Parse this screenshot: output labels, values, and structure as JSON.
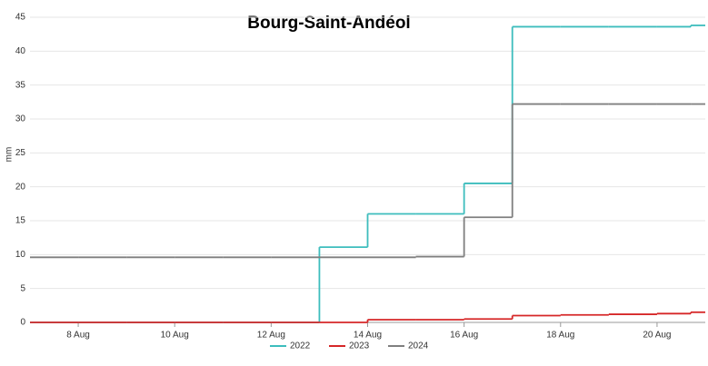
{
  "chart_data": {
    "type": "step",
    "title": "Bourg-Saint-Andéol",
    "y_label": "mm",
    "x": [
      7,
      8,
      9,
      10,
      11,
      12,
      13,
      14,
      15,
      16,
      17,
      18,
      19,
      20,
      20.7
    ],
    "series": [
      {
        "name": "2022",
        "color": "#3dbdbd",
        "values": [
          0,
          0,
          0,
          0,
          0,
          0,
          11.1,
          16,
          16,
          20.5,
          43.6,
          43.6,
          43.6,
          43.6,
          43.8
        ]
      },
      {
        "name": "2023",
        "color": "#d62728",
        "values": [
          0,
          0,
          0,
          0,
          0,
          0,
          0,
          0.4,
          0.4,
          0.5,
          1.0,
          1.1,
          1.2,
          1.3,
          1.5
        ]
      },
      {
        "name": "2024",
        "color": "#7f7f7f",
        "values": [
          9.6,
          9.6,
          9.6,
          9.6,
          9.6,
          9.6,
          9.6,
          9.6,
          9.7,
          15.5,
          32.2,
          32.2,
          32.2,
          32.2,
          32.2
        ]
      }
    ],
    "xlim": [
      7,
      21
    ],
    "xticks": [
      {
        "value": 8,
        "label": "8 Aug"
      },
      {
        "value": 10,
        "label": "10 Aug"
      },
      {
        "value": 12,
        "label": "12 Aug"
      },
      {
        "value": 14,
        "label": "14 Aug"
      },
      {
        "value": 16,
        "label": "16 Aug"
      },
      {
        "value": 18,
        "label": "18 Aug"
      },
      {
        "value": 20,
        "label": "20 Aug"
      }
    ],
    "ylim": [
      0,
      45
    ],
    "yticks": [
      0,
      5,
      10,
      15,
      20,
      25,
      30,
      35,
      40,
      45
    ],
    "grid": true,
    "legend": "bottom"
  }
}
